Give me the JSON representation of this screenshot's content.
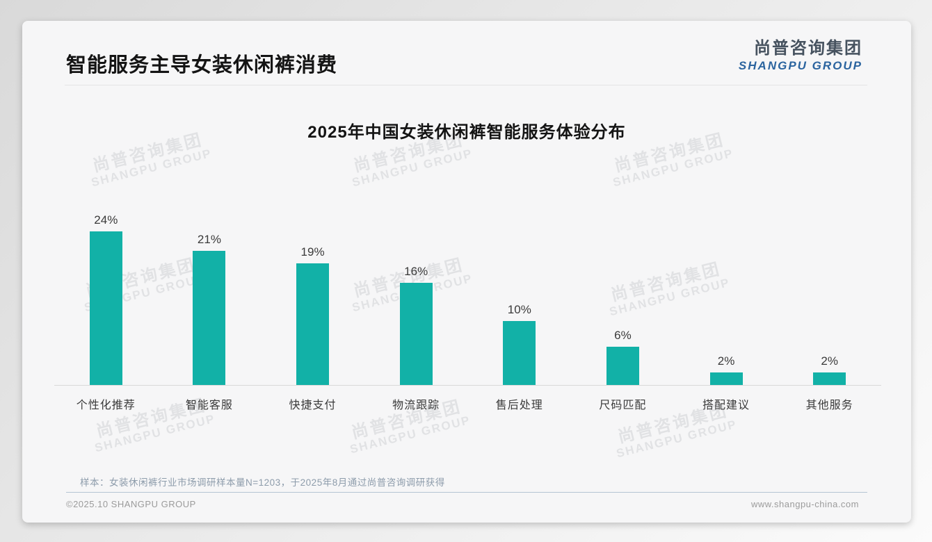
{
  "slide": {
    "header": {
      "title": "智能服务主导女装休闲裤消费"
    },
    "logo": {
      "cn": "尚普咨询集团",
      "en": "SHANGPU GROUP"
    },
    "watermark": {
      "cn": "尚普咨询集团",
      "en": "SHANGPU GROUP"
    },
    "note": "样本：女装休闲裤行业市场调研样本量N=1203，于2025年8月通过尚普咨询调研获得",
    "footer": {
      "left": "©2025.10 SHANGPU GROUP",
      "right": "www.shangpu-china.com"
    }
  },
  "chart_data": {
    "type": "bar",
    "title": "2025年中国女装休闲裤智能服务体验分布",
    "categories": [
      "个性化推荐",
      "智能客服",
      "快捷支付",
      "物流跟踪",
      "售后处理",
      "尺码匹配",
      "搭配建议",
      "其他服务"
    ],
    "values": [
      24,
      21,
      19,
      16,
      10,
      6,
      2,
      2
    ],
    "value_suffix": "%",
    "value_labels_position": "above bars",
    "bar_color": "#12b1a7",
    "axis_line_color": "#d8d8d8",
    "ylim": [
      0,
      26
    ],
    "grid": false,
    "legend": "none"
  }
}
